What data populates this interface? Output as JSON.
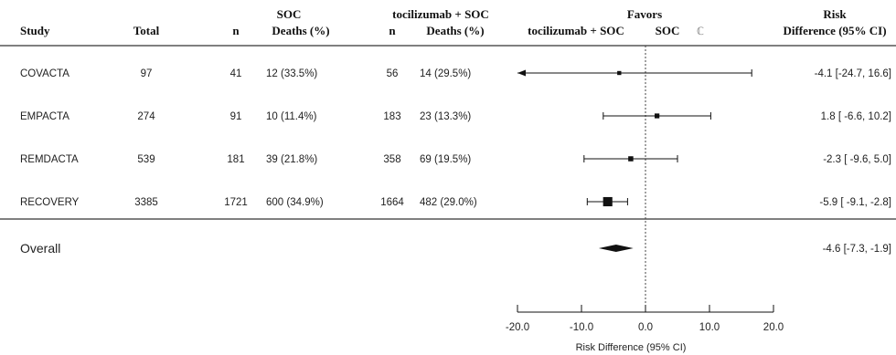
{
  "headers": {
    "study": "Study",
    "total": "Total",
    "soc_group": "SOC",
    "soc_n": "n",
    "soc_deaths": "Deaths (%)",
    "toci_group": "tocilizumab + SOC",
    "toci_n": "n",
    "toci_deaths": "Deaths (%)",
    "favors": "Favors",
    "favors_left": "tocilizumab + SOC",
    "favors_right": "SOC",
    "favors_symbol": "ℂ",
    "rd_line1": "Risk",
    "rd_line2": "Difference (95% CI)"
  },
  "rows": [
    {
      "study": "COVACTA",
      "total": "97",
      "soc_n": "41",
      "soc_deaths": "12 (33.5%)",
      "toci_n": "56",
      "toci_deaths": "14 (29.5%)",
      "rd_text": "-4.1 [-24.7, 16.6]"
    },
    {
      "study": "EMPACTA",
      "total": "274",
      "soc_n": "91",
      "soc_deaths": "10 (11.4%)",
      "toci_n": "183",
      "toci_deaths": "23 (13.3%)",
      "rd_text": "1.8 [ -6.6, 10.2]"
    },
    {
      "study": "REMDACTA",
      "total": "539",
      "soc_n": "181",
      "soc_deaths": "39 (21.8%)",
      "toci_n": "358",
      "toci_deaths": "69 (19.5%)",
      "rd_text": "-2.3 [ -9.6,  5.0]"
    },
    {
      "study": "RECOVERY",
      "total": "3385",
      "soc_n": "1721",
      "soc_deaths": "600 (34.9%)",
      "toci_n": "1664",
      "toci_deaths": "482 (29.0%)",
      "rd_text": "-5.9 [ -9.1, -2.8]"
    }
  ],
  "overall": {
    "label": "Overall",
    "rd_text": "-4.6 [-7.3, -1.9]"
  },
  "chart_data": {
    "type": "scatter",
    "subtype": "forest_plot",
    "xlabel": "Risk Difference (95% CI)",
    "xlim": [
      -20,
      20
    ],
    "xticks": [
      -20,
      -10,
      0,
      10,
      20
    ],
    "xtick_labels": [
      "-20.0",
      "-10.0",
      "0.0",
      "10.0",
      "20.0"
    ],
    "reference_line": 0,
    "studies": [
      {
        "name": "COVACTA",
        "estimate": -4.1,
        "lower": -24.7,
        "upper": 16.6,
        "lower_clipped": true,
        "weight": 0.03
      },
      {
        "name": "EMPACTA",
        "estimate": 1.8,
        "lower": -6.6,
        "upper": 10.2,
        "weight": 0.08
      },
      {
        "name": "REMDACTA",
        "estimate": -2.3,
        "lower": -9.6,
        "upper": 5.0,
        "weight": 0.1
      },
      {
        "name": "RECOVERY",
        "estimate": -5.9,
        "lower": -9.1,
        "upper": -2.8,
        "weight": 0.79
      }
    ],
    "overall": {
      "name": "Overall",
      "estimate": -4.6,
      "lower": -7.3,
      "upper": -1.9
    }
  }
}
